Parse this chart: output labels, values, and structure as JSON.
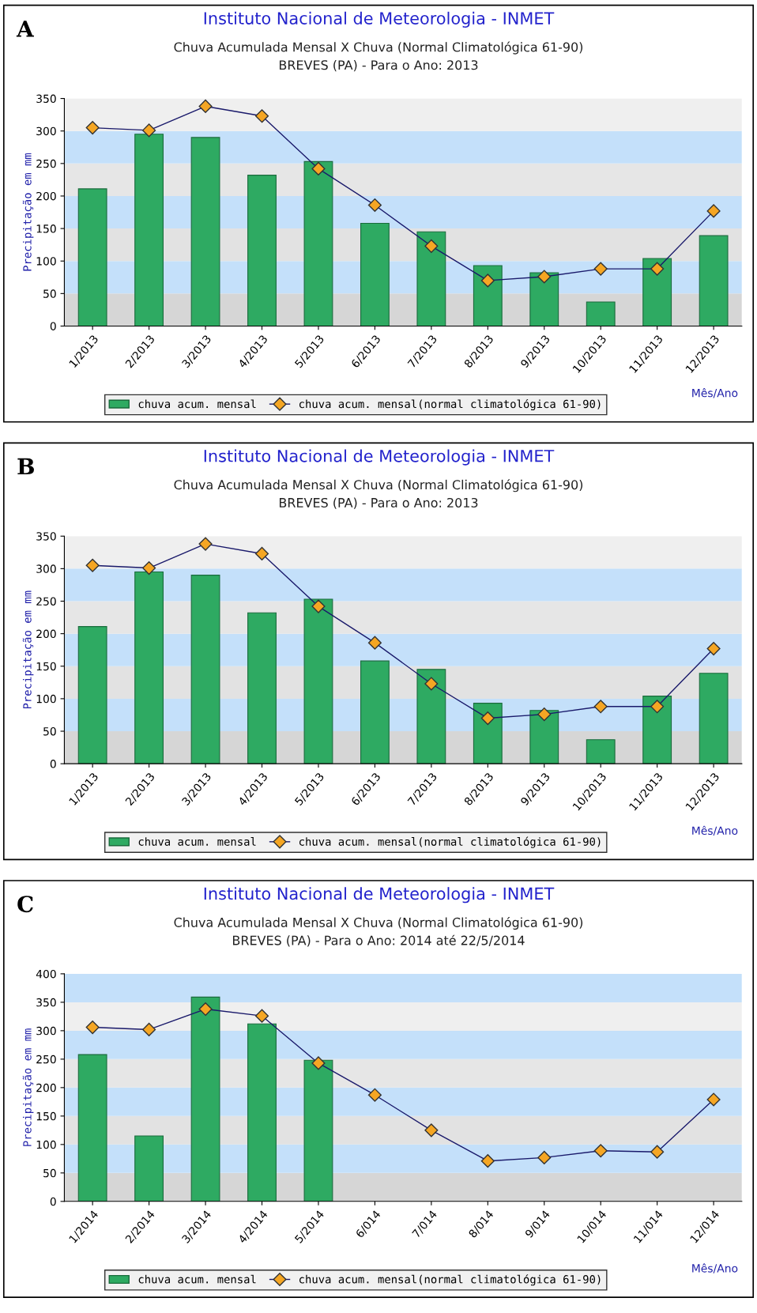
{
  "chart_data": [
    {
      "type": "bar",
      "title": "Instituto Nacional de Meteorologia - INMET",
      "subtitle": "Chuva Acumulada Mensal X Chuva (Normal Climatológica 61-90)\nBREVES (PA) - Para o Ano: 2013",
      "xlabel": "Mês/Ano",
      "ylabel": "Precipitação em mm",
      "annotations": [
        "A"
      ],
      "categories": [
        "1/2013",
        "2/2013",
        "3/2013",
        "4/2013",
        "5/2013",
        "6/2013",
        "7/2013",
        "8/2013",
        "9/2013",
        "10/2013",
        "11/2013",
        "12/2013"
      ],
      "series": [
        {
          "name": "chuva acum. mensal",
          "color": "#2eaa62",
          "values": [
            211,
            295,
            290,
            232,
            253,
            158,
            145,
            93,
            82,
            37,
            104,
            139
          ]
        },
        {
          "name": "chuva acum. mensal(normal climatológica 61-90)",
          "type": "line",
          "color": "#f5a623",
          "marker": "diamond",
          "values": [
            305,
            301,
            338,
            323,
            242,
            186,
            123,
            70,
            76,
            88,
            88,
            177
          ]
        }
      ],
      "ylim": [
        0,
        350
      ],
      "yticks": [
        0,
        50,
        100,
        150,
        200,
        250,
        300,
        350
      ],
      "legend": "bottom",
      "grid": false,
      "bands": [
        {
          "axis": "y",
          "from": 0,
          "to": 50,
          "color": "#d6d6d6"
        },
        {
          "axis": "y",
          "from": 50,
          "to": 100,
          "color": "#c4e0fa"
        },
        {
          "axis": "y",
          "from": 100,
          "to": 150,
          "color": "#e2e2e2"
        },
        {
          "axis": "y",
          "from": 150,
          "to": 200,
          "color": "#c4e0fa"
        },
        {
          "axis": "y",
          "from": 200,
          "to": 250,
          "color": "#e6e6e6"
        },
        {
          "axis": "y",
          "from": 250,
          "to": 300,
          "color": "#c4e0fa"
        },
        {
          "axis": "y",
          "from": 300,
          "to": 350,
          "color": "#efefef"
        }
      ]
    },
    {
      "type": "bar",
      "title": "Instituto Nacional de Meteorologia - INMET",
      "subtitle": "Chuva Acumulada Mensal X Chuva (Normal Climatológica 61-90)\nBREVES (PA) - Para o Ano: 2013",
      "xlabel": "Mês/Ano",
      "ylabel": "Precipitação em mm",
      "annotations": [
        "B"
      ],
      "categories": [
        "1/2013",
        "2/2013",
        "3/2013",
        "4/2013",
        "5/2013",
        "6/2013",
        "7/2013",
        "8/2013",
        "9/2013",
        "10/2013",
        "11/2013",
        "12/2013"
      ],
      "series": [
        {
          "name": "chuva acum. mensal",
          "color": "#2eaa62",
          "values": [
            211,
            295,
            290,
            232,
            253,
            158,
            145,
            93,
            82,
            37,
            104,
            139
          ]
        },
        {
          "name": "chuva acum. mensal(normal climatológica 61-90)",
          "type": "line",
          "color": "#f5a623",
          "marker": "diamond",
          "values": [
            305,
            301,
            338,
            323,
            242,
            186,
            123,
            70,
            76,
            88,
            88,
            177
          ]
        }
      ],
      "ylim": [
        0,
        350
      ],
      "yticks": [
        0,
        50,
        100,
        150,
        200,
        250,
        300,
        350
      ],
      "legend": "bottom",
      "grid": false,
      "bands": [
        {
          "axis": "y",
          "from": 0,
          "to": 50,
          "color": "#d6d6d6"
        },
        {
          "axis": "y",
          "from": 50,
          "to": 100,
          "color": "#c4e0fa"
        },
        {
          "axis": "y",
          "from": 100,
          "to": 150,
          "color": "#e2e2e2"
        },
        {
          "axis": "y",
          "from": 150,
          "to": 200,
          "color": "#c4e0fa"
        },
        {
          "axis": "y",
          "from": 200,
          "to": 250,
          "color": "#e6e6e6"
        },
        {
          "axis": "y",
          "from": 250,
          "to": 300,
          "color": "#c4e0fa"
        },
        {
          "axis": "y",
          "from": 300,
          "to": 350,
          "color": "#efefef"
        }
      ]
    },
    {
      "type": "bar",
      "title": "Instituto Nacional de Meteorologia - INMET",
      "subtitle": "Chuva Acumulada Mensal X Chuva (Normal Climatológica 61-90)\nBREVES (PA) - Para o Ano: 2014 até 22/5/2014",
      "xlabel": "Mês/Ano",
      "ylabel": "Precipitação em mm",
      "annotations": [
        "C"
      ],
      "categories": [
        "1/2014",
        "2/2014",
        "3/2014",
        "4/2014",
        "5/2014",
        "6/014",
        "7/014",
        "8/014",
        "9/014",
        "10/014",
        "11/014",
        "12/014"
      ],
      "series": [
        {
          "name": "chuva acum. mensal",
          "color": "#2eaa62",
          "values": [
            258,
            115,
            359,
            312,
            248,
            null,
            null,
            null,
            null,
            null,
            null,
            null
          ]
        },
        {
          "name": "chuva acum. mensal(normal climatológica 61-90)",
          "type": "line",
          "color": "#f5a623",
          "marker": "diamond",
          "values": [
            306,
            302,
            338,
            326,
            243,
            187,
            125,
            71,
            77,
            89,
            87,
            179
          ]
        }
      ],
      "ylim": [
        0,
        400
      ],
      "yticks": [
        0,
        50,
        100,
        150,
        200,
        250,
        300,
        350,
        400
      ],
      "legend": "bottom",
      "grid": false,
      "bands": [
        {
          "axis": "y",
          "from": 0,
          "to": 50,
          "color": "#d6d6d6"
        },
        {
          "axis": "y",
          "from": 50,
          "to": 100,
          "color": "#c4e0fa"
        },
        {
          "axis": "y",
          "from": 100,
          "to": 150,
          "color": "#e2e2e2"
        },
        {
          "axis": "y",
          "from": 150,
          "to": 200,
          "color": "#c4e0fa"
        },
        {
          "axis": "y",
          "from": 200,
          "to": 250,
          "color": "#e6e6e6"
        },
        {
          "axis": "y",
          "from": 250,
          "to": 300,
          "color": "#c4e0fa"
        },
        {
          "axis": "y",
          "from": 300,
          "to": 350,
          "color": "#efefef"
        },
        {
          "axis": "y",
          "from": 350,
          "to": 400,
          "color": "#c4e0fa"
        }
      ]
    }
  ]
}
